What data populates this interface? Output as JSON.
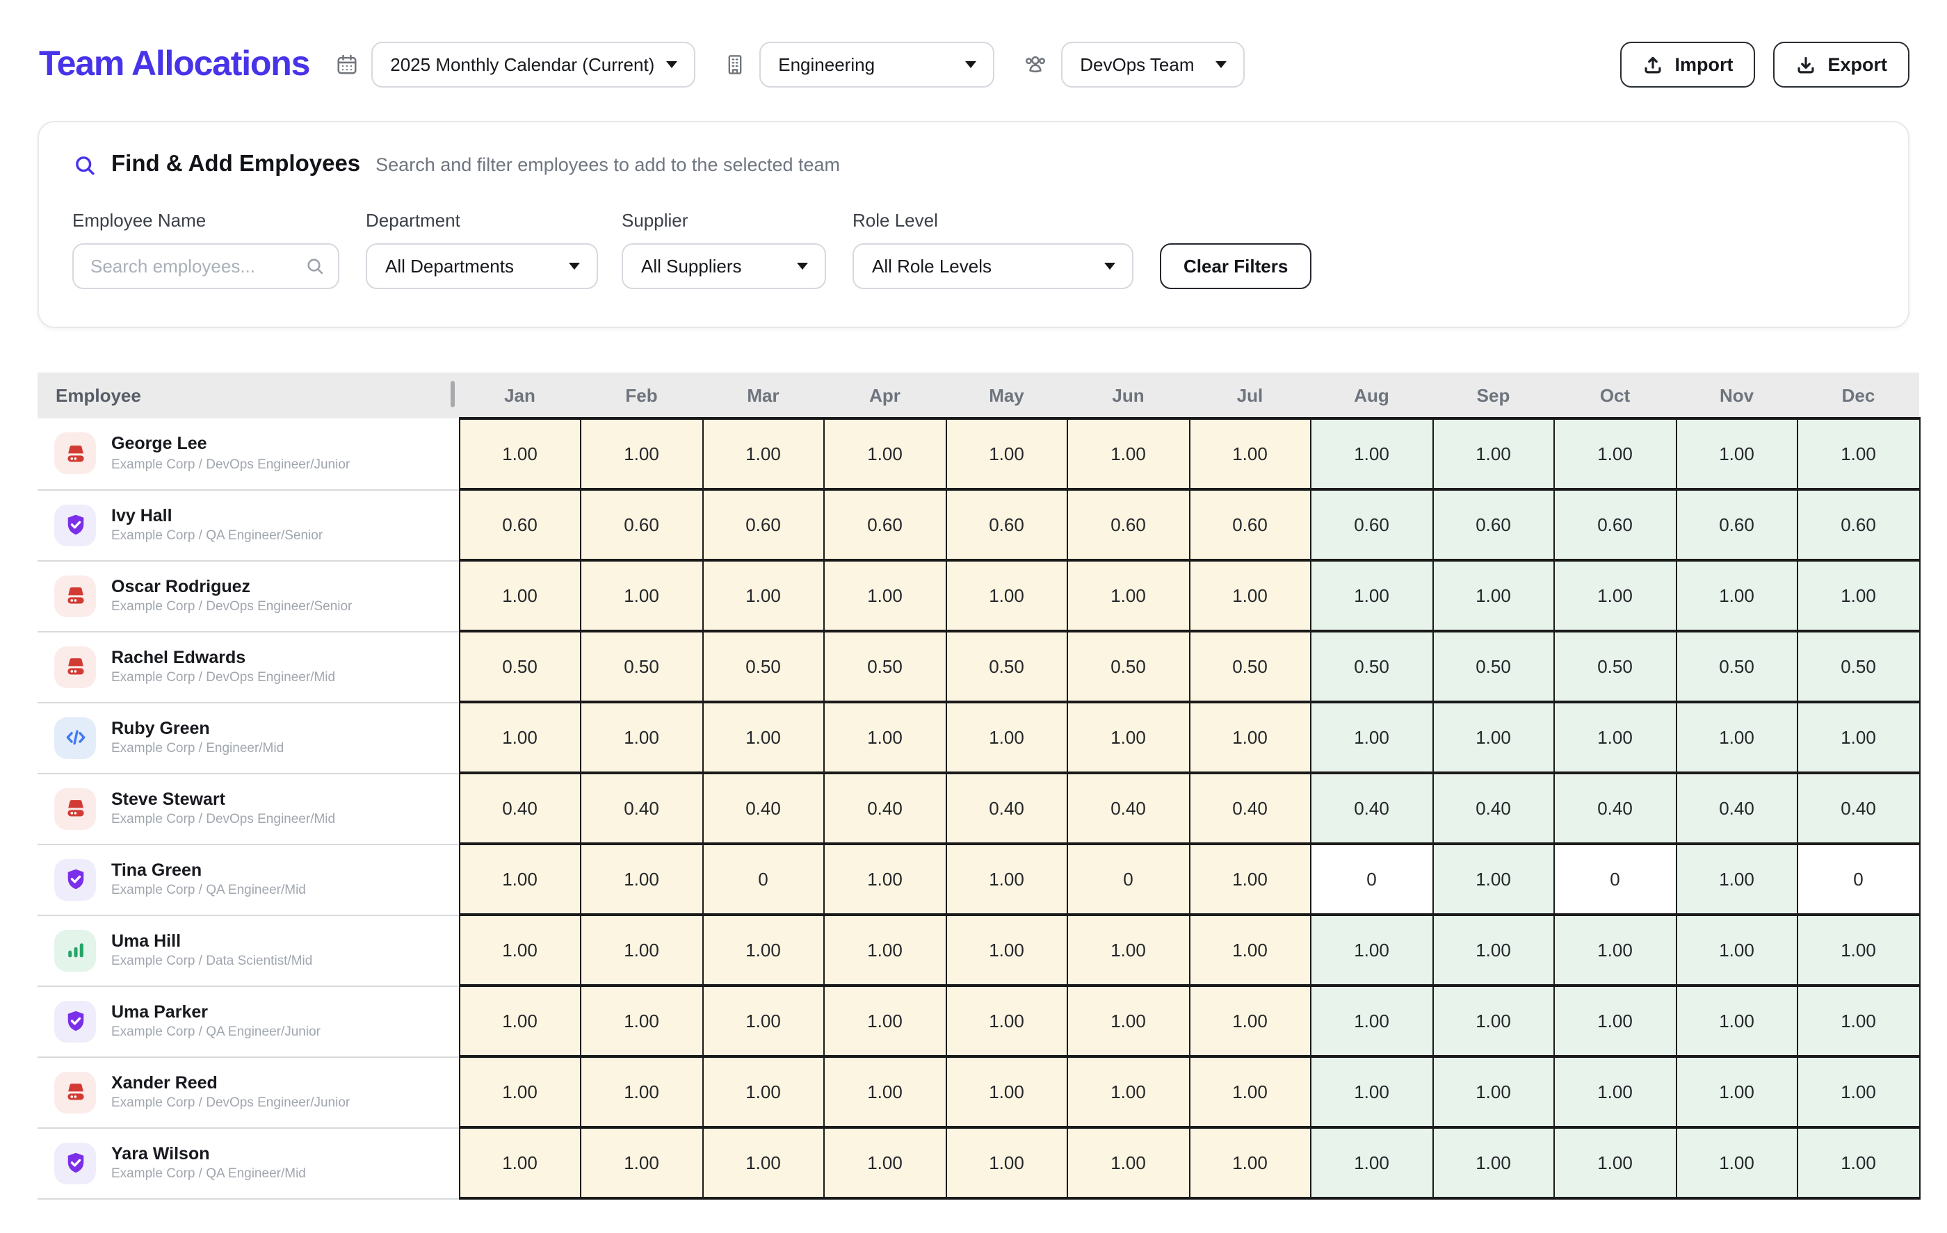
{
  "header": {
    "title": "Team Allocations",
    "calendar_dropdown": {
      "value": "2025 Monthly Calendar (Current)"
    },
    "department_dropdown": {
      "value": "Engineering"
    },
    "team_dropdown": {
      "value": "DevOps Team"
    },
    "import_button": "Import",
    "export_button": "Export"
  },
  "find_panel": {
    "title": "Find & Add Employees",
    "subtitle": "Search and filter employees to add to the selected team",
    "employee_name_label": "Employee Name",
    "search_placeholder": "Search employees...",
    "department_label": "Department",
    "department_value": "All Departments",
    "supplier_label": "Supplier",
    "supplier_value": "All Suppliers",
    "role_label": "Role Level",
    "role_value": "All Role Levels",
    "clear_button": "Clear Filters"
  },
  "table": {
    "employee_header": "Employee",
    "months": [
      "Jan",
      "Feb",
      "Mar",
      "Apr",
      "May",
      "Jun",
      "Jul",
      "Aug",
      "Sep",
      "Oct",
      "Nov",
      "Dec"
    ],
    "rows": [
      {
        "name": "George Lee",
        "meta": "Example Corp / DevOps Engineer/Junior",
        "icon": "server",
        "values": [
          "1.00",
          "1.00",
          "1.00",
          "1.00",
          "1.00",
          "1.00",
          "1.00",
          "1.00",
          "1.00",
          "1.00",
          "1.00",
          "1.00"
        ]
      },
      {
        "name": "Ivy Hall",
        "meta": "Example Corp / QA Engineer/Senior",
        "icon": "shield",
        "values": [
          "0.60",
          "0.60",
          "0.60",
          "0.60",
          "0.60",
          "0.60",
          "0.60",
          "0.60",
          "0.60",
          "0.60",
          "0.60",
          "0.60"
        ]
      },
      {
        "name": "Oscar Rodriguez",
        "meta": "Example Corp / DevOps Engineer/Senior",
        "icon": "server",
        "values": [
          "1.00",
          "1.00",
          "1.00",
          "1.00",
          "1.00",
          "1.00",
          "1.00",
          "1.00",
          "1.00",
          "1.00",
          "1.00",
          "1.00"
        ]
      },
      {
        "name": "Rachel Edwards",
        "meta": "Example Corp / DevOps Engineer/Mid",
        "icon": "server",
        "values": [
          "0.50",
          "0.50",
          "0.50",
          "0.50",
          "0.50",
          "0.50",
          "0.50",
          "0.50",
          "0.50",
          "0.50",
          "0.50",
          "0.50"
        ]
      },
      {
        "name": "Ruby Green",
        "meta": "Example Corp / Engineer/Mid",
        "icon": "code",
        "values": [
          "1.00",
          "1.00",
          "1.00",
          "1.00",
          "1.00",
          "1.00",
          "1.00",
          "1.00",
          "1.00",
          "1.00",
          "1.00",
          "1.00"
        ]
      },
      {
        "name": "Steve Stewart",
        "meta": "Example Corp / DevOps Engineer/Mid",
        "icon": "server",
        "values": [
          "0.40",
          "0.40",
          "0.40",
          "0.40",
          "0.40",
          "0.40",
          "0.40",
          "0.40",
          "0.40",
          "0.40",
          "0.40",
          "0.40"
        ]
      },
      {
        "name": "Tina Green",
        "meta": "Example Corp / QA Engineer/Mid",
        "icon": "shield",
        "values": [
          "1.00",
          "1.00",
          "0",
          "1.00",
          "1.00",
          "0",
          "1.00",
          "0",
          "1.00",
          "0",
          "1.00",
          "0"
        ]
      },
      {
        "name": "Uma Hill",
        "meta": "Example Corp / Data Scientist/Mid",
        "icon": "chart",
        "values": [
          "1.00",
          "1.00",
          "1.00",
          "1.00",
          "1.00",
          "1.00",
          "1.00",
          "1.00",
          "1.00",
          "1.00",
          "1.00",
          "1.00"
        ]
      },
      {
        "name": "Uma Parker",
        "meta": "Example Corp / QA Engineer/Junior",
        "icon": "shield",
        "values": [
          "1.00",
          "1.00",
          "1.00",
          "1.00",
          "1.00",
          "1.00",
          "1.00",
          "1.00",
          "1.00",
          "1.00",
          "1.00",
          "1.00"
        ]
      },
      {
        "name": "Xander Reed",
        "meta": "Example Corp / DevOps Engineer/Junior",
        "icon": "server",
        "values": [
          "1.00",
          "1.00",
          "1.00",
          "1.00",
          "1.00",
          "1.00",
          "1.00",
          "1.00",
          "1.00",
          "1.00",
          "1.00",
          "1.00"
        ]
      },
      {
        "name": "Yara Wilson",
        "meta": "Example Corp / QA Engineer/Mid",
        "icon": "shield",
        "values": [
          "1.00",
          "1.00",
          "1.00",
          "1.00",
          "1.00",
          "1.00",
          "1.00",
          "1.00",
          "1.00",
          "1.00",
          "1.00",
          "1.00"
        ]
      }
    ]
  },
  "colors": {
    "accent": "#4733E8",
    "past_cell_bg": "#FCF5E1",
    "future_cell_bg": "#E7F3EB",
    "zero_future_cell_bg": "#FFFFFF",
    "header_band_bg": "#EBEBEB",
    "grid_border": "#1A1A1A",
    "role_icon_colors": {
      "server": "#D23B33",
      "shield": "#7B2FE8",
      "code": "#4179F2",
      "chart": "#27A566"
    },
    "role_icon_bgs": {
      "server": "#FBECEA",
      "shield": "#EFEDFC",
      "code": "#E3EDFA",
      "chart": "#E3F4EA"
    }
  }
}
